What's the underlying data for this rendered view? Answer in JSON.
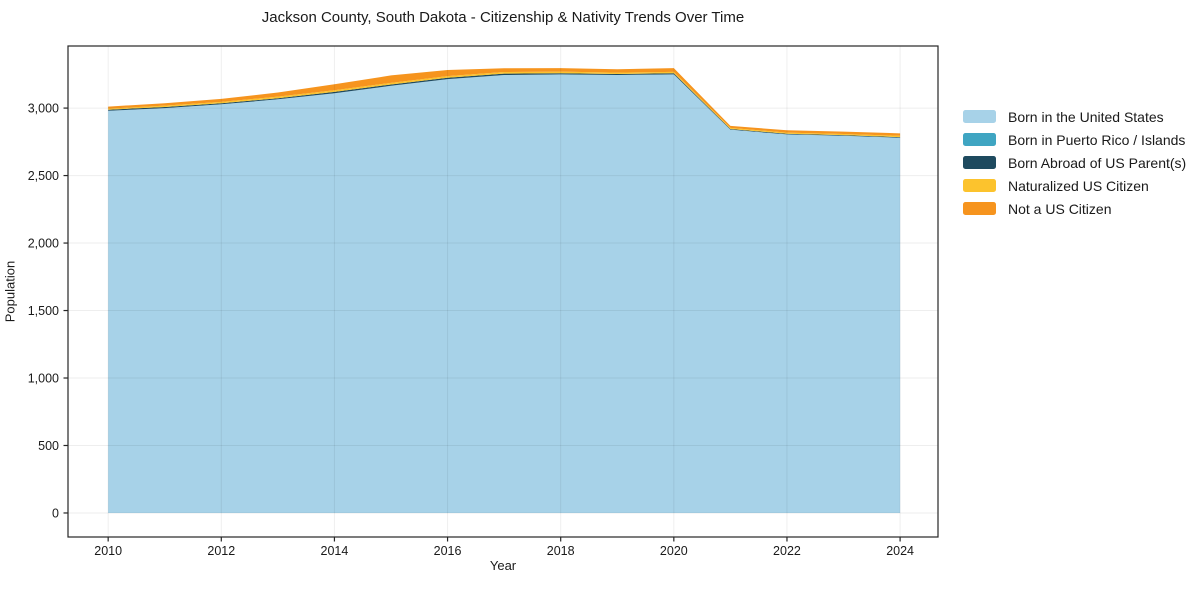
{
  "page": {
    "title": "Jackson County, South Dakota - Citizenship & Nativity Trends Over Time"
  },
  "chart_data": {
    "type": "area",
    "stacked": true,
    "title": "Jackson County, South Dakota - Citizenship & Nativity Trends Over Time",
    "xlabel": "Year",
    "ylabel": "Population",
    "x": [
      2010,
      2011,
      2012,
      2013,
      2014,
      2015,
      2016,
      2017,
      2018,
      2019,
      2020,
      2021,
      2022,
      2023,
      2024
    ],
    "series": [
      {
        "name": "Born in the United States",
        "color": "#A7D2E8",
        "values": [
          2980,
          3000,
          3028,
          3065,
          3110,
          3165,
          3215,
          3245,
          3250,
          3245,
          3250,
          2840,
          2805,
          2795,
          2780
        ]
      },
      {
        "name": "Born in Puerto Rico / Islands",
        "color": "#3FA5C2",
        "values": [
          0,
          0,
          0,
          0,
          0,
          0,
          0,
          0,
          0,
          0,
          0,
          0,
          0,
          0,
          0
        ]
      },
      {
        "name": "Born Abroad of US Parent(s)",
        "color": "#1E4A5F",
        "values": [
          8,
          8,
          8,
          8,
          10,
          10,
          10,
          10,
          8,
          8,
          8,
          5,
          5,
          5,
          5
        ]
      },
      {
        "name": "Naturalized US Citizen",
        "color": "#FCC32D",
        "values": [
          8,
          10,
          10,
          12,
          12,
          12,
          12,
          12,
          12,
          10,
          10,
          8,
          8,
          8,
          10
        ]
      },
      {
        "name": "Not a US Citizen",
        "color": "#F6941E",
        "values": [
          15,
          18,
          22,
          30,
          45,
          55,
          45,
          28,
          26,
          25,
          28,
          15,
          18,
          18,
          18
        ]
      }
    ],
    "x_ticks": [
      2010,
      2012,
      2014,
      2016,
      2018,
      2020,
      2022,
      2024
    ],
    "x_tick_labels": [
      "2010",
      "2012",
      "2014",
      "2016",
      "2018",
      "2020",
      "2022",
      "2024"
    ],
    "y_ticks": [
      0,
      500,
      1000,
      1500,
      2000,
      2500,
      3000
    ],
    "y_tick_labels": [
      "0",
      "500",
      "1,000",
      "1,500",
      "2,000",
      "2,500",
      "3,000"
    ],
    "xlim": [
      2009.29,
      2024.67
    ],
    "ylim": [
      -178,
      3460
    ],
    "grid": true,
    "legend_position": "right of plot, vertical"
  },
  "style_colors": {
    "spine": "#262626",
    "tick_label": "#1a1a1a",
    "gridline": "rgba(0,0,0,0.065)",
    "background": "#ffffff"
  }
}
